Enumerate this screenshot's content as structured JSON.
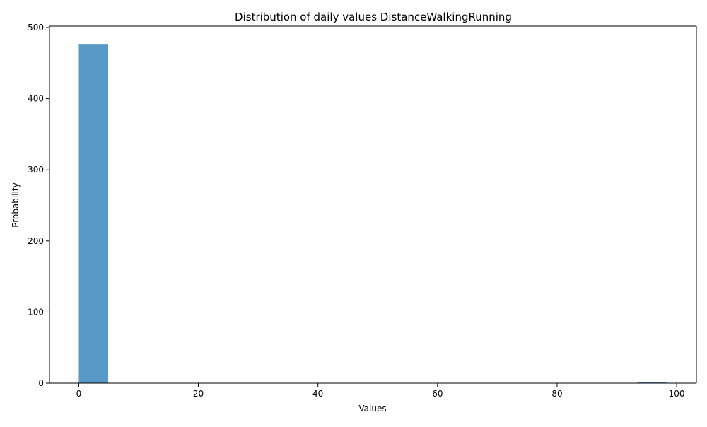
{
  "chart_data": {
    "type": "bar",
    "title": "Distribution of daily values DistanceWalkingRunning",
    "xlabel": "Values",
    "ylabel": "Probability",
    "xlim": [
      -4.9,
      103.3
    ],
    "ylim": [
      0,
      502
    ],
    "xticks": [
      0,
      20,
      40,
      60,
      80,
      100
    ],
    "yticks": [
      0,
      100,
      200,
      300,
      400,
      500
    ],
    "bin_width": 4.92,
    "bins": [
      {
        "x_start": 0,
        "x_end": 4.92,
        "count": 477
      },
      {
        "x_start": 93.5,
        "x_end": 98.4,
        "count": 1
      }
    ],
    "grid": false,
    "colors": {
      "bar": "#1f77b4",
      "axis": "#000000"
    }
  }
}
